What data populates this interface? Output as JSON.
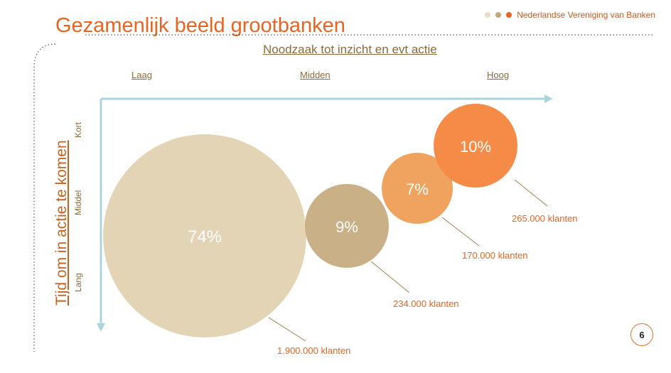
{
  "header": {
    "title": "Gezamenlijk beeld grootbanken",
    "organization": "Nederlandse Vereniging van Banken"
  },
  "page_number": "6",
  "colors": {
    "accent": "#e8641f",
    "axis": "#a9d6dc",
    "dot1": "#e8dcc6",
    "dot2": "#c4a878",
    "dot3": "#e8641f"
  },
  "chart_data": {
    "type": "bubble",
    "title": "Gezamenlijk beeld grootbanken",
    "xlabel": "Noodzaak tot inzicht en evt actie",
    "ylabel": "Tijd om in actie te komen",
    "x_categories": [
      "Laag",
      "Midden",
      "Hoog"
    ],
    "y_categories": [
      "Kort",
      "Middel",
      "Lang"
    ],
    "series": [
      {
        "label": "74%",
        "value": 74,
        "customers": "1.900.000 klanten",
        "color": "#e3d4b6"
      },
      {
        "label": "9%",
        "value": 9,
        "customers": "234.000 klanten",
        "color": "#c9b086"
      },
      {
        "label": "7%",
        "value": 7,
        "customers": "170.000 klanten",
        "color": "#f0a35f"
      },
      {
        "label": "10%",
        "value": 10,
        "customers": "265.000 klanten",
        "color": "#f48c47"
      }
    ]
  }
}
